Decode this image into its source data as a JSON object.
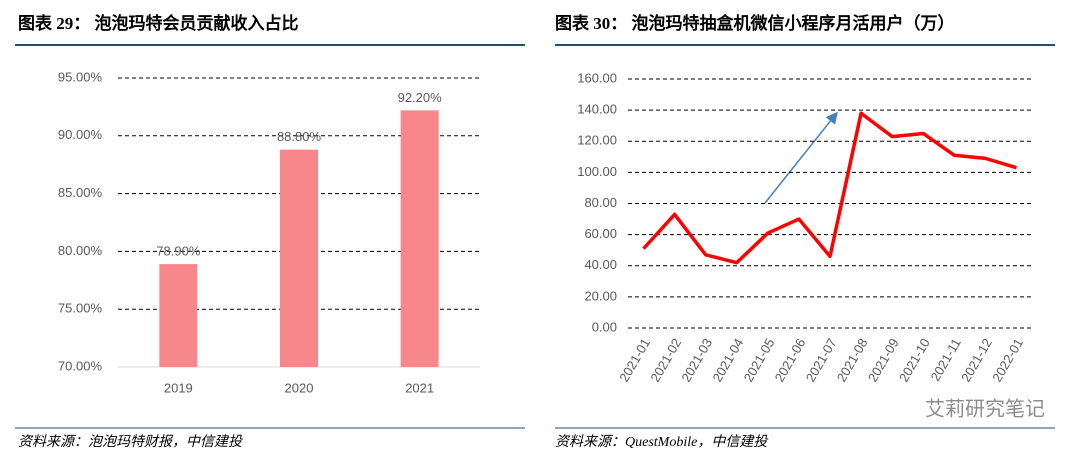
{
  "chart_data": [
    {
      "type": "bar",
      "title": "图表 29： 泡泡玛特会员贡献收入占比",
      "categories": [
        "2019",
        "2020",
        "2021"
      ],
      "values": [
        78.9,
        88.8,
        92.2
      ],
      "value_labels": [
        "78.90%",
        "88.80%",
        "92.20%"
      ],
      "color": "#f7878a",
      "ylim": [
        70,
        95
      ],
      "yticks": [
        {
          "value": 70,
          "label": "70.00%"
        },
        {
          "value": 75,
          "label": "75.00%"
        },
        {
          "value": 80,
          "label": "80.00%"
        },
        {
          "value": 85,
          "label": "85.00%"
        },
        {
          "value": 90,
          "label": "90.00%"
        },
        {
          "value": 95,
          "label": "95.00%"
        }
      ],
      "grid": true,
      "source": "资料来源：泡泡玛特财报，中信建投"
    },
    {
      "type": "line",
      "title": "图表 30： 泡泡玛特抽盒机微信小程序月活用户（万）",
      "categories": [
        "2021-01",
        "2021-02",
        "2021-03",
        "2021-04",
        "2021-05",
        "2021-06",
        "2021-07",
        "2021-08",
        "2021-09",
        "2021-10",
        "2021-11",
        "2021-12",
        "2022-01"
      ],
      "values": [
        51,
        73,
        47,
        42,
        61,
        70,
        46,
        138,
        123,
        125,
        111,
        109,
        103
      ],
      "color": "#ff0000",
      "ylim": [
        0,
        160
      ],
      "yticks": [
        {
          "value": 0,
          "label": "0.00"
        },
        {
          "value": 20,
          "label": "20.00"
        },
        {
          "value": 40,
          "label": "40.00"
        },
        {
          "value": 60,
          "label": "60.00"
        },
        {
          "value": 80,
          "label": "80.00"
        },
        {
          "value": 100,
          "label": "100.00"
        },
        {
          "value": 120,
          "label": "120.00"
        },
        {
          "value": 140,
          "label": "140.00"
        },
        {
          "value": 160,
          "label": "160.00"
        }
      ],
      "grid": true,
      "source": "资料来源：QuestMobile，中信建投"
    }
  ],
  "watermark": "艾莉研究笔记"
}
